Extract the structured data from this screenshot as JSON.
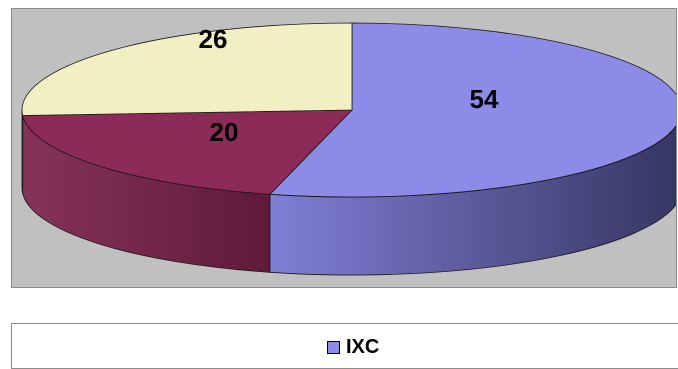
{
  "chart_data": {
    "type": "pie",
    "style": "3d",
    "slices": [
      {
        "value": 54,
        "label": "54",
        "color": "#8c8ce8"
      },
      {
        "value": 20,
        "label": "20",
        "color": "#8c2a58"
      },
      {
        "value": 26,
        "label": "26",
        "color": "#f2f0c2"
      }
    ],
    "legend": {
      "placement": "bottom",
      "entries": [
        {
          "name": "IXC",
          "color": "#8c8ce8"
        }
      ]
    },
    "plot_background": "#c0c0c0"
  }
}
